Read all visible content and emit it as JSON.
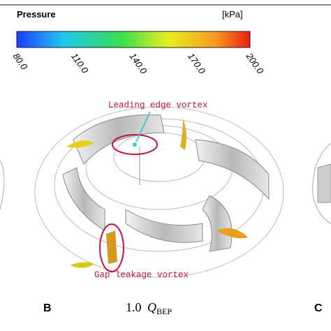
{
  "colorbar": {
    "title": "Pressure",
    "unit": "[kPa]",
    "ticks": [
      "80.0",
      "110.0",
      "140.0",
      "170.0",
      "200.0"
    ]
  },
  "annotations": {
    "leading": "Leading edge vortex",
    "gap": "Gap leakage vortex"
  },
  "panels": {
    "left": "B",
    "right": "C"
  },
  "caption": {
    "factor": "1.0",
    "symbol": "Q",
    "subscript": "BEP"
  }
}
